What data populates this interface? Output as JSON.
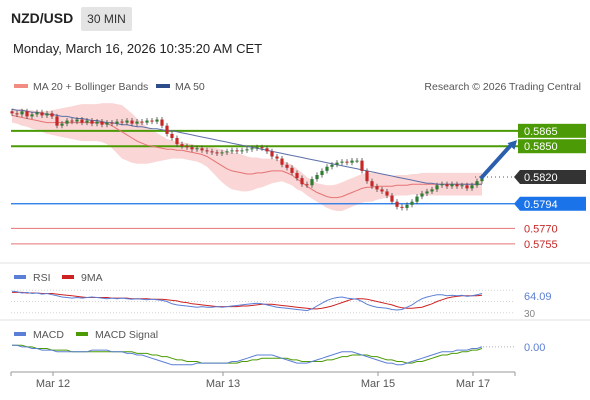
{
  "header": {
    "symbol": "NZD/USD",
    "timeframe": "30 MIN",
    "datetime": "Monday, March 16, 2026 10:35:20 AM CET"
  },
  "legend": {
    "bollinger": "MA 20 + Bollinger Bands",
    "ma50": "MA 50",
    "credit": "Research © 2026 Trading Central"
  },
  "rsi_legend": {
    "rsi": "RSI",
    "ma": "9MA"
  },
  "macd_legend": {
    "macd": "MACD",
    "signal": "MACD Signal"
  },
  "colors": {
    "up": "#2e7d32",
    "down": "#c62828",
    "green_line": "#4c9a06",
    "blue_line": "#1a73e8",
    "red_line": "#e57373",
    "ma50": "#5c6fa8",
    "band": "#f8c8c8",
    "rsi": "#5b7fd6",
    "rsi_ma": "#cc2222",
    "macd": "#5b7fd6",
    "macd_signal": "#4c9a06"
  },
  "chart_data": {
    "type": "candlestick",
    "ylim": [
      0.5749,
      0.5895
    ],
    "x_tick_labels": [
      "Mar 12",
      "Mar 13",
      "Mar 15",
      "Mar 17"
    ],
    "x_tick_index": [
      9,
      43,
      74,
      93
    ],
    "levels": [
      {
        "value": 0.5865,
        "label": "0.5865",
        "kind": "resistance"
      },
      {
        "value": 0.585,
        "label": "0.5850",
        "kind": "resistance"
      },
      {
        "value": 0.582,
        "label": "0.5820",
        "kind": "last"
      },
      {
        "value": 0.5794,
        "label": "0.5794",
        "kind": "pivot"
      },
      {
        "value": 0.577,
        "label": "0.5770",
        "kind": "support"
      },
      {
        "value": 0.5755,
        "label": "0.5755",
        "kind": "support"
      }
    ],
    "close": [
      0.5882,
      0.5881,
      0.5884,
      0.5879,
      0.5881,
      0.5883,
      0.588,
      0.5882,
      0.5879,
      0.587,
      0.5872,
      0.5875,
      0.5874,
      0.5876,
      0.5873,
      0.5875,
      0.5872,
      0.5874,
      0.5871,
      0.5873,
      0.5872,
      0.5874,
      0.5873,
      0.5875,
      0.5872,
      0.5874,
      0.5873,
      0.5875,
      0.5874,
      0.5876,
      0.587,
      0.5862,
      0.5858,
      0.5852,
      0.585,
      0.5849,
      0.5847,
      0.5848,
      0.5846,
      0.5845,
      0.5844,
      0.5843,
      0.5844,
      0.5845,
      0.5846,
      0.5845,
      0.5846,
      0.5847,
      0.5848,
      0.5849,
      0.5848,
      0.5845,
      0.584,
      0.5838,
      0.5832,
      0.5829,
      0.5824,
      0.5819,
      0.5813,
      0.5812,
      0.5818,
      0.5822,
      0.5826,
      0.583,
      0.5832,
      0.5834,
      0.5835,
      0.5834,
      0.5836,
      0.5836,
      0.5826,
      0.5816,
      0.5811,
      0.5808,
      0.5806,
      0.5802,
      0.5796,
      0.5791,
      0.579,
      0.5793,
      0.5796,
      0.5801,
      0.5804,
      0.5806,
      0.5808,
      0.5812,
      0.5813,
      0.5811,
      0.5813,
      0.5811,
      0.5812,
      0.5809,
      0.5812,
      0.5816,
      0.582
    ],
    "ma20": [
      0.588,
      0.5879,
      0.5878,
      0.5877,
      0.5876,
      0.5875,
      0.5874,
      0.5873,
      0.5873,
      0.5873,
      0.5873,
      0.5873,
      0.5873,
      0.5873,
      0.5873,
      0.5873,
      0.5873,
      0.5873,
      0.5873,
      0.5872,
      0.587,
      0.5867,
      0.5864,
      0.5861,
      0.5858,
      0.5855,
      0.5853,
      0.5851,
      0.585,
      0.5849,
      0.5848,
      0.5847,
      0.5847,
      0.5846,
      0.5846,
      0.5845,
      0.5844,
      0.5843,
      0.5842,
      0.584,
      0.5837,
      0.5834,
      0.5831,
      0.5828,
      0.5826,
      0.5825,
      0.5824,
      0.5823,
      0.5823,
      0.5824,
      0.5824,
      0.5825,
      0.5826,
      0.5826,
      0.5826,
      0.5824,
      0.5822,
      0.5818,
      0.5815,
      0.5811,
      0.5808,
      0.5805,
      0.5803,
      0.5801,
      0.58,
      0.58,
      0.5801,
      0.5803,
      0.5805,
      0.5807,
      0.5809,
      0.581,
      0.581,
      0.5811,
      0.5811,
      0.5811,
      0.5811,
      0.5812,
      0.5812,
      0.5812,
      0.5813,
      0.5813,
      0.5813,
      0.5813,
      0.5813,
      0.5813,
      0.5813,
      0.5813,
      0.5813,
      0.5813,
      0.5813,
      0.5813,
      0.5813,
      0.5813,
      0.5813
    ],
    "bb_width": [
      0.0007,
      0.0007,
      0.0008,
      0.0008,
      0.0009,
      0.0009,
      0.001,
      0.0011,
      0.0012,
      0.0013,
      0.0014,
      0.0015,
      0.0016,
      0.0017,
      0.0018,
      0.0018,
      0.0018,
      0.0018,
      0.0019,
      0.002,
      0.0022,
      0.0024,
      0.0026,
      0.0025,
      0.0024,
      0.0022,
      0.002,
      0.0018,
      0.0016,
      0.0014,
      0.0012,
      0.001,
      0.0009,
      0.0008,
      0.0008,
      0.0008,
      0.0008,
      0.0008,
      0.0009,
      0.001,
      0.0012,
      0.0014,
      0.0016,
      0.0017,
      0.0018,
      0.0018,
      0.0018,
      0.0017,
      0.0016,
      0.0015,
      0.0014,
      0.0013,
      0.0012,
      0.0011,
      0.001,
      0.001,
      0.001,
      0.001,
      0.0009,
      0.0009,
      0.0009,
      0.0009,
      0.001,
      0.0011,
      0.0012,
      0.0013,
      0.0014,
      0.0014,
      0.0014,
      0.0014,
      0.0014,
      0.0014,
      0.0014,
      0.0013,
      0.0012,
      0.0011,
      0.001,
      0.001,
      0.001,
      0.001,
      0.001,
      0.001,
      0.0011,
      0.0011,
      0.0011,
      0.0011,
      0.0011,
      0.0011,
      0.0011,
      0.0011,
      0.0011,
      0.0011,
      0.0011,
      0.0011,
      0.0011
    ],
    "ma50": [
      0.5886,
      0.5885,
      0.5885,
      0.5884,
      0.5883,
      0.5883,
      0.5882,
      0.5881,
      0.5881,
      0.588,
      0.5879,
      0.5879,
      0.5878,
      0.5877,
      0.5877,
      0.5876,
      0.5875,
      0.5875,
      0.5874,
      0.5873,
      0.5873,
      0.5872,
      0.5871,
      0.5871,
      0.587,
      0.5869,
      0.5869,
      0.5868,
      0.5867,
      0.5867,
      0.5866,
      0.5865,
      0.5865,
      0.5864,
      0.5863,
      0.5862,
      0.5861,
      0.586,
      0.5859,
      0.5858,
      0.5857,
      0.5856,
      0.5855,
      0.5854,
      0.5853,
      0.5852,
      0.5851,
      0.585,
      0.5849,
      0.5848,
      0.5847,
      0.5846,
      0.5845,
      0.5844,
      0.5843,
      0.5842,
      0.5841,
      0.584,
      0.5839,
      0.5838,
      0.5837,
      0.5836,
      0.5835,
      0.5834,
      0.5833,
      0.5832,
      0.5831,
      0.583,
      0.5829,
      0.5828,
      0.5827,
      0.5826,
      0.5825,
      0.5824,
      0.5823,
      0.5822,
      0.5821,
      0.582,
      0.5819,
      0.5818,
      0.5817,
      0.5816,
      0.5815,
      0.5814,
      0.5814,
      0.5813,
      0.5813,
      0.5813,
      0.5813,
      0.5813,
      0.5813,
      0.5813,
      0.5813,
      0.5813,
      0.5813
    ],
    "projection": {
      "from": [
        94,
        0.582
      ],
      "to": [
        101,
        0.5856
      ]
    },
    "rsi": {
      "ylim": [
        28,
        72
      ],
      "levels": [
        70,
        50,
        30
      ],
      "level_labels": [
        "",
        "",
        "30"
      ],
      "last_label": "64.09",
      "values": [
        68,
        67,
        65,
        66,
        64,
        65,
        63,
        64,
        62,
        60,
        58,
        57,
        56,
        57,
        56,
        57,
        58,
        57,
        56,
        55,
        56,
        55,
        56,
        55,
        54,
        55,
        54,
        53,
        54,
        53,
        52,
        50,
        46,
        44,
        43,
        42,
        41,
        40,
        41,
        40,
        40,
        41,
        40,
        41,
        42,
        43,
        44,
        45,
        46,
        47,
        46,
        44,
        42,
        40,
        39,
        38,
        37,
        36,
        35,
        34,
        37,
        42,
        47,
        52,
        55,
        57,
        58,
        56,
        55,
        54,
        50,
        45,
        42,
        40,
        39,
        38,
        36,
        35,
        36,
        40,
        44,
        50,
        55,
        58,
        60,
        62,
        62,
        60,
        61,
        60,
        61,
        59,
        60,
        62,
        64.09
      ],
      "ma": [
        66,
        66,
        66,
        65,
        65,
        65,
        64,
        64,
        64,
        63,
        62,
        61,
        60,
        59,
        58,
        57,
        57,
        57,
        57,
        57,
        56,
        56,
        56,
        56,
        55,
        55,
        55,
        55,
        54,
        54,
        54,
        53,
        52,
        51,
        49,
        48,
        46,
        45,
        44,
        43,
        42,
        41,
        41,
        41,
        41,
        41,
        42,
        42,
        43,
        44,
        45,
        45,
        45,
        44,
        43,
        42,
        41,
        40,
        39,
        38,
        37,
        37,
        38,
        40,
        42,
        45,
        48,
        51,
        54,
        55,
        55,
        54,
        52,
        50,
        48,
        46,
        44,
        41,
        39,
        38,
        38,
        39,
        40,
        43,
        46,
        50,
        53,
        56,
        58,
        59,
        60,
        60,
        60,
        60,
        61
      ]
    },
    "macd": {
      "ylim": [
        -0.0013,
        0.0003
      ],
      "last_label": "0.00",
      "macd": [
        0.0001,
        0.0001,
        0.0,
        0.0,
        -0.0001,
        -0.0001,
        -0.0002,
        -0.0002,
        -0.0002,
        -0.0003,
        -0.0003,
        -0.0003,
        -0.0003,
        -0.0003,
        -0.0003,
        -0.0003,
        -0.0002,
        -0.0002,
        -0.0002,
        -0.0002,
        -0.0003,
        -0.0003,
        -0.0003,
        -0.0004,
        -0.0004,
        -0.0005,
        -0.0005,
        -0.0006,
        -0.0007,
        -0.0008,
        -0.0009,
        -0.001,
        -0.0011,
        -0.0011,
        -0.0011,
        -0.0011,
        -0.0011,
        -0.001,
        -0.001,
        -0.001,
        -0.001,
        -0.001,
        -0.001,
        -0.001,
        -0.0009,
        -0.0009,
        -0.0008,
        -0.0007,
        -0.0006,
        -0.0005,
        -0.0005,
        -0.0005,
        -0.0005,
        -0.0006,
        -0.0007,
        -0.0008,
        -0.0009,
        -0.001,
        -0.001,
        -0.001,
        -0.0009,
        -0.0008,
        -0.0007,
        -0.0006,
        -0.0005,
        -0.0004,
        -0.0003,
        -0.0003,
        -0.0003,
        -0.0004,
        -0.0005,
        -0.0006,
        -0.0007,
        -0.0008,
        -0.0009,
        -0.001,
        -0.001,
        -0.0011,
        -0.0011,
        -0.001,
        -0.0009,
        -0.0008,
        -0.0007,
        -0.0006,
        -0.0005,
        -0.0004,
        -0.0003,
        -0.0003,
        -0.0003,
        -0.0002,
        -0.0002,
        -0.0002,
        -0.0001,
        -0.0001,
        0.0
      ],
      "signal": [
        0.0001,
        0.0001,
        0.0001,
        0.0,
        0.0,
        -0.0001,
        -0.0001,
        -0.0001,
        -0.0002,
        -0.0002,
        -0.0002,
        -0.0002,
        -0.0003,
        -0.0003,
        -0.0003,
        -0.0003,
        -0.0003,
        -0.0003,
        -0.0003,
        -0.0003,
        -0.0003,
        -0.0003,
        -0.0003,
        -0.0003,
        -0.0003,
        -0.0004,
        -0.0004,
        -0.0004,
        -0.0005,
        -0.0005,
        -0.0006,
        -0.0006,
        -0.0007,
        -0.0008,
        -0.0008,
        -0.0009,
        -0.0009,
        -0.0009,
        -0.001,
        -0.001,
        -0.001,
        -0.001,
        -0.001,
        -0.001,
        -0.001,
        -0.001,
        -0.0009,
        -0.0009,
        -0.0008,
        -0.0008,
        -0.0007,
        -0.0007,
        -0.0007,
        -0.0007,
        -0.0007,
        -0.0007,
        -0.0008,
        -0.0008,
        -0.0009,
        -0.0009,
        -0.0009,
        -0.0009,
        -0.0009,
        -0.0008,
        -0.0008,
        -0.0007,
        -0.0006,
        -0.0006,
        -0.0005,
        -0.0005,
        -0.0005,
        -0.0005,
        -0.0006,
        -0.0006,
        -0.0007,
        -0.0008,
        -0.0008,
        -0.0009,
        -0.0009,
        -0.001,
        -0.001,
        -0.0009,
        -0.0009,
        -0.0008,
        -0.0007,
        -0.0006,
        -0.0005,
        -0.0005,
        -0.0004,
        -0.0004,
        -0.0003,
        -0.0003,
        -0.0002,
        -0.0002,
        -0.0001
      ]
    }
  }
}
